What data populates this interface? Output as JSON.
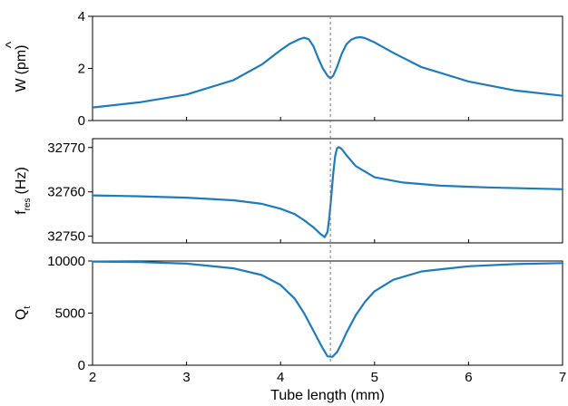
{
  "colors": {
    "series": "#1f7bbf",
    "reference_line": "#777777",
    "axes": "#000000"
  },
  "chart_data": [
    {
      "type": "line",
      "panel": "top",
      "ylabel": "Ŵ (pm)",
      "ylabel_main": "W",
      "ylabel_hat": "^",
      "ylabel_unit": "(pm)",
      "xlim": [
        2,
        7
      ],
      "ylim": [
        0,
        4
      ],
      "yticks": [
        0,
        2,
        4
      ],
      "grid": false,
      "series": [
        {
          "x": [
            2.0,
            2.5,
            3.0,
            3.5,
            3.8,
            4.0,
            4.1,
            4.2,
            4.25,
            4.3,
            4.35,
            4.4,
            4.45,
            4.5,
            4.53,
            4.56,
            4.6,
            4.65,
            4.7,
            4.75,
            4.8,
            4.85,
            4.9,
            5.0,
            5.2,
            5.5,
            6.0,
            6.5,
            7.0
          ],
          "y": [
            0.5,
            0.7,
            1.0,
            1.55,
            2.15,
            2.7,
            2.95,
            3.12,
            3.18,
            3.12,
            2.85,
            2.4,
            2.0,
            1.72,
            1.62,
            1.72,
            2.05,
            2.55,
            2.92,
            3.1,
            3.18,
            3.2,
            3.16,
            3.0,
            2.6,
            2.05,
            1.5,
            1.15,
            0.95
          ]
        }
      ]
    },
    {
      "type": "line",
      "panel": "middle",
      "ylabel": "f_res (Hz)",
      "ylabel_main": "f",
      "ylabel_sub": "res",
      "ylabel_unit": "(Hz)",
      "xlim": [
        2,
        7
      ],
      "ylim": [
        32748.5,
        32772
      ],
      "yticks": [
        32750,
        32760,
        32770
      ],
      "grid": false,
      "series": [
        {
          "x": [
            2.0,
            2.5,
            3.0,
            3.5,
            3.8,
            4.0,
            4.15,
            4.25,
            4.35,
            4.42,
            4.47,
            4.5,
            4.52,
            4.54,
            4.56,
            4.58,
            4.6,
            4.62,
            4.65,
            4.7,
            4.8,
            5.0,
            5.3,
            5.7,
            6.2,
            7.0
          ],
          "y": [
            32759.2,
            32759.0,
            32758.7,
            32758.1,
            32757.3,
            32756.2,
            32755.0,
            32753.6,
            32752.0,
            32750.6,
            32749.8,
            32751.0,
            32754.5,
            32759.0,
            32764.0,
            32768.0,
            32769.8,
            32770.1,
            32769.7,
            32768.3,
            32765.8,
            32763.3,
            32762.1,
            32761.4,
            32761.0,
            32760.6
          ]
        }
      ]
    },
    {
      "type": "line",
      "panel": "bottom",
      "ylabel": "Q_t",
      "ylabel_main": "Q",
      "ylabel_sub": "t",
      "xlabel": "Tube length (mm)",
      "xlim": [
        2,
        7
      ],
      "ylim": [
        0,
        10000
      ],
      "yticks": [
        0,
        5000,
        10000
      ],
      "xticks": [
        2,
        3,
        4,
        5,
        6,
        7
      ],
      "grid": false,
      "series": [
        {
          "x": [
            2.0,
            2.5,
            3.0,
            3.5,
            3.8,
            4.0,
            4.15,
            4.25,
            4.35,
            4.45,
            4.5,
            4.55,
            4.6,
            4.65,
            4.7,
            4.8,
            4.9,
            5.0,
            5.2,
            5.5,
            6.0,
            6.5,
            7.0
          ],
          "y": [
            9950,
            9900,
            9750,
            9300,
            8650,
            7700,
            6400,
            5000,
            3300,
            1600,
            850,
            800,
            1250,
            2100,
            3100,
            4800,
            6100,
            7100,
            8200,
            9000,
            9500,
            9700,
            9800
          ]
        }
      ]
    }
  ],
  "reference_x": 4.53
}
